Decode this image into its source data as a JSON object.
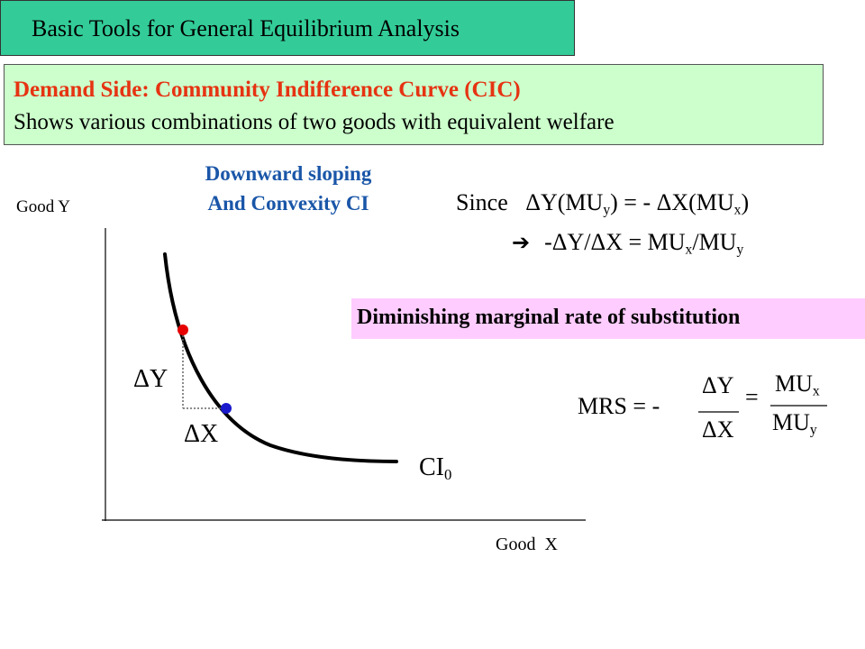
{
  "header": {
    "title": "Basic Tools for General Equilibrium Analysis"
  },
  "intro": {
    "heading": "Demand Side: Community Indifference Curve (CIC)",
    "description": "Shows various combinations of two goods with equivalent welfare"
  },
  "diagram": {
    "caption_line1": "Downward sloping",
    "caption_line2": "And Convexity CI",
    "y_axis_label": "Good Y",
    "x_axis_label": "Good  X",
    "delta_y_label": "ΔY",
    "delta_x_label": "ΔX",
    "curve_label": "CI",
    "curve_label_sub": "0",
    "colors": {
      "point_upper": "#e60000",
      "point_lower": "#1a1acc",
      "curve": "#000000"
    }
  },
  "equations": {
    "since_word": "Since",
    "since_part1": "ΔY(MU",
    "since_sub1": "y",
    "since_part2": ") = - ΔX(MU",
    "since_sub2": "x",
    "since_part3": ")",
    "implies_arrow": "➔",
    "implies_part1": "-ΔY/ΔX = MU",
    "implies_sub1": "x",
    "implies_part2": "/MU",
    "implies_sub2": "y"
  },
  "dmrs": {
    "label": "Diminishing marginal rate of substitution"
  },
  "mrs": {
    "lhs": "MRS = -",
    "numerator": "ΔY",
    "denominator": "ΔX",
    "equals": "=",
    "mu_num": "MU",
    "mu_num_sub": "x",
    "mu_den": "MU",
    "mu_den_sub": "y"
  }
}
